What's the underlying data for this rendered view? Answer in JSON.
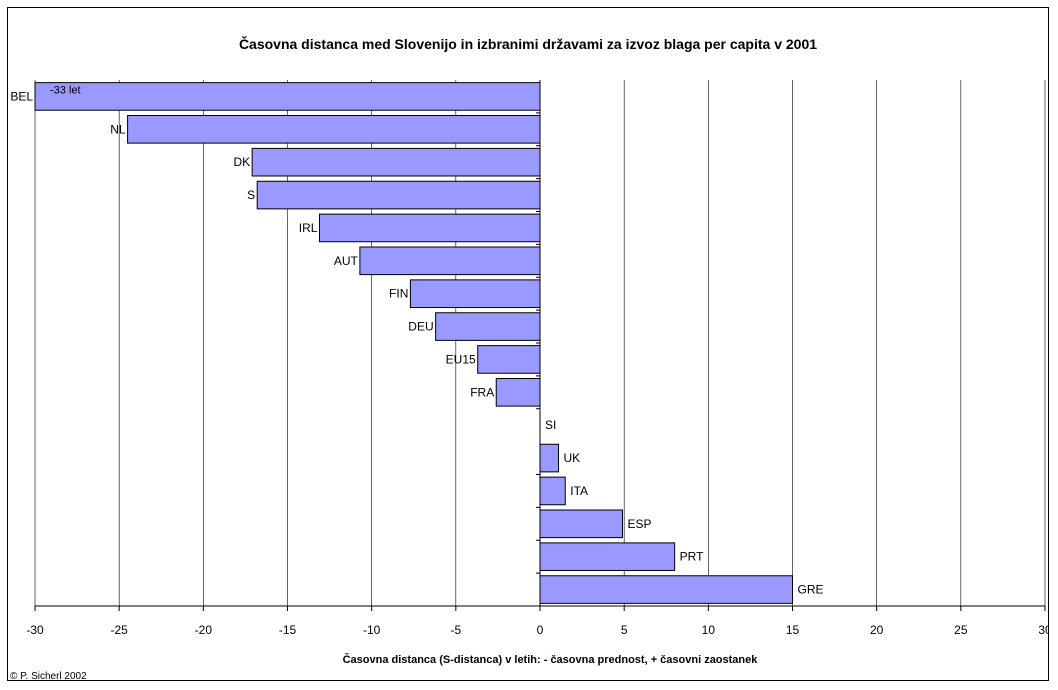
{
  "chart_data": {
    "type": "bar",
    "orientation": "horizontal",
    "title": "Časovna distanca med Slovenijo in izbranimi državami za izvoz blaga per capita v 2001",
    "xlabel": "Časovna distanca (S-distanca) v letih: - časovna prednost, + časovni zaostanek",
    "ylabel": "",
    "xlim": [
      -30,
      30
    ],
    "x_ticks": [
      -30,
      -25,
      -20,
      -15,
      -10,
      -5,
      0,
      5,
      10,
      15,
      20,
      25,
      30
    ],
    "grid": "vertical",
    "bar_color": "#9999ff",
    "categories": [
      "BEL",
      "NL",
      "DK",
      "S",
      "IRL",
      "AUT",
      "FIN",
      "DEU",
      "EU15",
      "FRA",
      "SI",
      "UK",
      "ITA",
      "ESP",
      "PRT",
      "GRE"
    ],
    "values": [
      -33,
      -24.5,
      -17.1,
      -16.8,
      -13.1,
      -10.7,
      -7.7,
      -6.2,
      -3.7,
      -2.6,
      0,
      1.1,
      1.5,
      4.9,
      8.0,
      15.0
    ],
    "annotations": [
      {
        "category": "BEL",
        "text": "-33 let"
      }
    ]
  },
  "credit": "© P. Sicherl 2002"
}
